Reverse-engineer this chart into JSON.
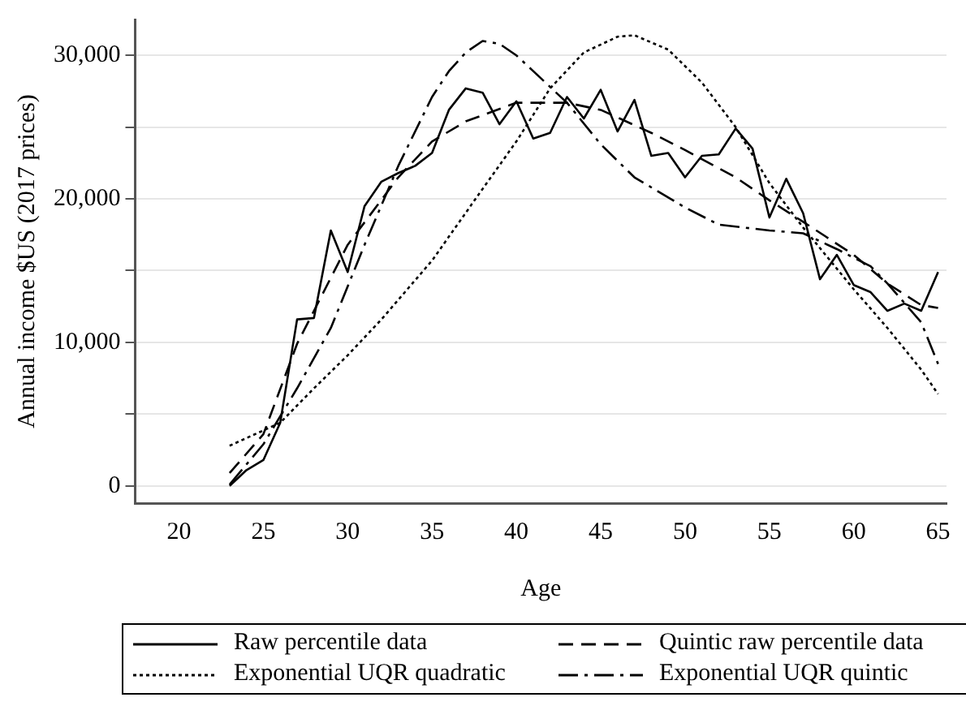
{
  "chart_data": {
    "type": "line",
    "xlabel": "Age",
    "ylabel": "Annual income $US (2017 prices)",
    "xlim": [
      17.4,
      65.5
    ],
    "xticks": [
      20,
      25,
      30,
      35,
      40,
      45,
      50,
      55,
      60,
      65
    ],
    "ylim": [
      -1200,
      32500
    ],
    "yticks": [
      0,
      {
        "value": 5000,
        "label": null
      },
      {
        "value": 10000,
        "label": "10,000"
      },
      {
        "value": 15000,
        "label": null
      },
      {
        "value": 20000,
        "label": "20,000"
      },
      {
        "value": 25000,
        "label": null
      },
      {
        "value": 30000,
        "label": "30,000"
      }
    ],
    "grid": "y",
    "legend": "bottom",
    "marker": "none",
    "series": [
      {
        "name": "Raw percentile data",
        "color": "#000000",
        "line_style": "solid",
        "x": [
          23,
          24,
          25,
          26,
          27,
          28,
          29,
          30,
          31,
          32,
          33,
          34,
          35,
          36,
          37,
          38,
          39,
          40,
          41,
          42,
          43,
          44,
          45,
          46,
          47,
          48,
          49,
          50,
          51,
          52,
          53,
          54,
          55,
          56,
          57,
          58,
          59,
          60,
          61,
          62,
          63,
          64,
          65
        ],
        "values": [
          0,
          1100,
          1800,
          4400,
          11600,
          11700,
          17800,
          14900,
          19500,
          21200,
          21800,
          22300,
          23200,
          26200,
          27700,
          27400,
          25200,
          26800,
          24200,
          24600,
          27100,
          25600,
          27600,
          24700,
          26900,
          23000,
          23200,
          21500,
          23000,
          23100,
          24900,
          23500,
          18700,
          21400,
          19000,
          14400,
          16100,
          14000,
          13500,
          12200,
          12700,
          12200,
          14900
        ]
      },
      {
        "name": "Quintic raw percentile data",
        "color": "#000000",
        "line_style": "dashed",
        "x": [
          23,
          25,
          27,
          30,
          33,
          35,
          37,
          40,
          43,
          45,
          48,
          50,
          53,
          55,
          57,
          60,
          62,
          64,
          65
        ],
        "values": [
          900,
          3600,
          9900,
          16800,
          21500,
          24000,
          25400,
          26700,
          26700,
          26200,
          24600,
          23400,
          21500,
          19900,
          18400,
          16100,
          14100,
          12600,
          12400
        ]
      },
      {
        "name": "Exponential UQR quadratic",
        "color": "#000000",
        "line_style": "dotted",
        "x": [
          23,
          26,
          28,
          30,
          32,
          35,
          38,
          40,
          42,
          44,
          46,
          47,
          49,
          51,
          53,
          55,
          57,
          60,
          62,
          64,
          65
        ],
        "values": [
          2800,
          4400,
          6800,
          9100,
          11600,
          15700,
          20700,
          24000,
          27700,
          30200,
          31300,
          31400,
          30400,
          28100,
          25000,
          21100,
          18000,
          13700,
          11000,
          8100,
          6400
        ]
      },
      {
        "name": "Exponential UQR quintic",
        "color": "#000000",
        "line_style": "dashdot",
        "x": [
          23,
          25,
          27,
          29,
          31,
          33,
          35,
          36,
          37,
          38,
          39,
          40,
          41,
          43,
          45,
          47,
          50,
          52,
          55,
          57,
          59,
          61,
          62,
          64,
          65
        ],
        "values": [
          100,
          2900,
          6800,
          11000,
          16800,
          22300,
          27100,
          28900,
          30200,
          31000,
          30800,
          30000,
          28900,
          26700,
          23800,
          21500,
          19400,
          18200,
          17800,
          17600,
          16500,
          15300,
          14100,
          11400,
          8500
        ]
      }
    ]
  }
}
